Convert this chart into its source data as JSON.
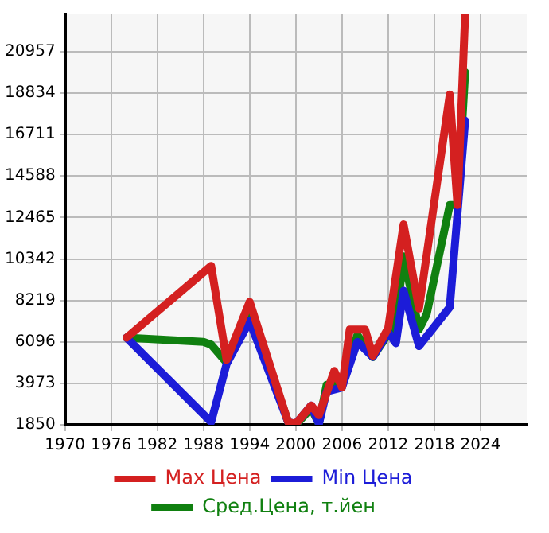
{
  "chart_data": {
    "type": "line",
    "xlim": [
      1970,
      2030
    ],
    "xticks": [
      1970,
      1976,
      1982,
      1988,
      1994,
      2000,
      2006,
      2012,
      2018,
      2024
    ],
    "ylim": [
      1850,
      22868
    ],
    "yticks": [
      1850,
      3973,
      6096,
      8219,
      10342,
      12465,
      14588,
      16711,
      18834,
      20957
    ],
    "grid": true,
    "legend": "bottom",
    "marker": "none",
    "line_style": "solid",
    "series": [
      {
        "name": "Max Цена",
        "color": "#d42020",
        "x": [
          1978,
          1989,
          1991,
          1994,
          1999,
          2000,
          2002,
          2003,
          2005,
          2006,
          2007,
          2009,
          2010,
          2012,
          2014,
          2016,
          2020,
          2021,
          2022
        ],
        "values": [
          6308,
          9989,
          5176,
          8149,
          1990,
          1900,
          2840,
          2345,
          4610,
          3760,
          6730,
          6730,
          5390,
          6800,
          12110,
          7800,
          18760,
          13100,
          22868
        ]
      },
      {
        "name": "Min Цена",
        "color": "#1c1cd8",
        "x": [
          1978,
          1989,
          1991,
          1994,
          1999,
          2000,
          2002,
          2003,
          2004,
          2006,
          2008,
          2010,
          2012,
          2013,
          2014,
          2016,
          2020,
          2022
        ],
        "values": [
          6308,
          1990,
          4960,
          7160,
          1990,
          1900,
          2840,
          1900,
          3550,
          3760,
          6100,
          5320,
          6590,
          6025,
          8715,
          5880,
          7870,
          17420
        ]
      },
      {
        "name": "Сред.Цена, т.йен",
        "color": "#108010",
        "x": [
          1978,
          1988,
          1989,
          1991,
          1994,
          1999,
          2000,
          2002,
          2003,
          2004,
          2006,
          2008,
          2010,
          2013,
          2014,
          2016,
          2017,
          2020,
          2021,
          2022
        ],
        "values": [
          6308,
          6096,
          5954,
          5035,
          7795,
          1990,
          1850,
          2700,
          1900,
          3900,
          3973,
          6450,
          5320,
          7090,
          10480,
          6730,
          7510,
          13100,
          13100,
          19900
        ]
      }
    ]
  }
}
